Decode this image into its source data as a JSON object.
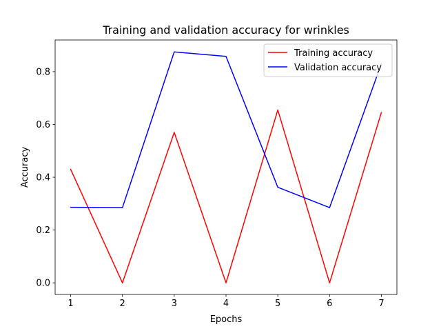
{
  "chart_data": {
    "type": "line",
    "title": "Training and validation accuracy for wrinkles",
    "xlabel": "Epochs",
    "ylabel": "Accuracy",
    "x": [
      1,
      2,
      3,
      4,
      5,
      6,
      7
    ],
    "xlim": [
      0.7,
      7.3
    ],
    "ylim": [
      -0.044,
      0.92
    ],
    "xticks": [
      1,
      2,
      3,
      4,
      5,
      6,
      7
    ],
    "yticks": [
      0.0,
      0.2,
      0.4,
      0.6,
      0.8
    ],
    "ytick_labels": [
      "0.0",
      "0.2",
      "0.4",
      "0.6",
      "0.8"
    ],
    "grid": false,
    "legend_position": "top-right",
    "series": [
      {
        "name": "Training accuracy",
        "color": "#ff0000",
        "values": [
          0.43,
          0.0,
          0.57,
          0.0,
          0.655,
          0.0,
          0.645
        ]
      },
      {
        "name": "Validation accuracy",
        "color": "#0000ff",
        "values": [
          0.286,
          0.285,
          0.875,
          0.858,
          0.362,
          0.285,
          0.83
        ]
      }
    ]
  }
}
